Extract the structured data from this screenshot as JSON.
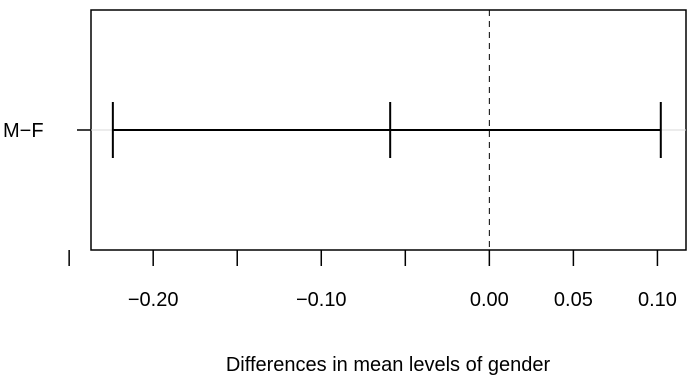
{
  "chart_data": {
    "type": "errorbar",
    "title": "",
    "xlabel": "Differences in mean levels of gender",
    "ylabel": "",
    "categories": [
      "M−F"
    ],
    "series": [
      {
        "values": [
          {
            "estimate": -0.059,
            "lower": -0.224,
            "upper": 0.102
          }
        ]
      }
    ],
    "xlim": [
      -0.237,
      0.117
    ],
    "xticks": [
      -0.25,
      -0.2,
      -0.15,
      -0.1,
      -0.05,
      0.0,
      0.05,
      0.1
    ],
    "xtick_labels": [
      "",
      "−0.20",
      "",
      "−0.10",
      "",
      "0.00",
      "0.05",
      "0.10"
    ],
    "reference_line": {
      "x": 0,
      "style": "dashed"
    },
    "grid": false
  }
}
